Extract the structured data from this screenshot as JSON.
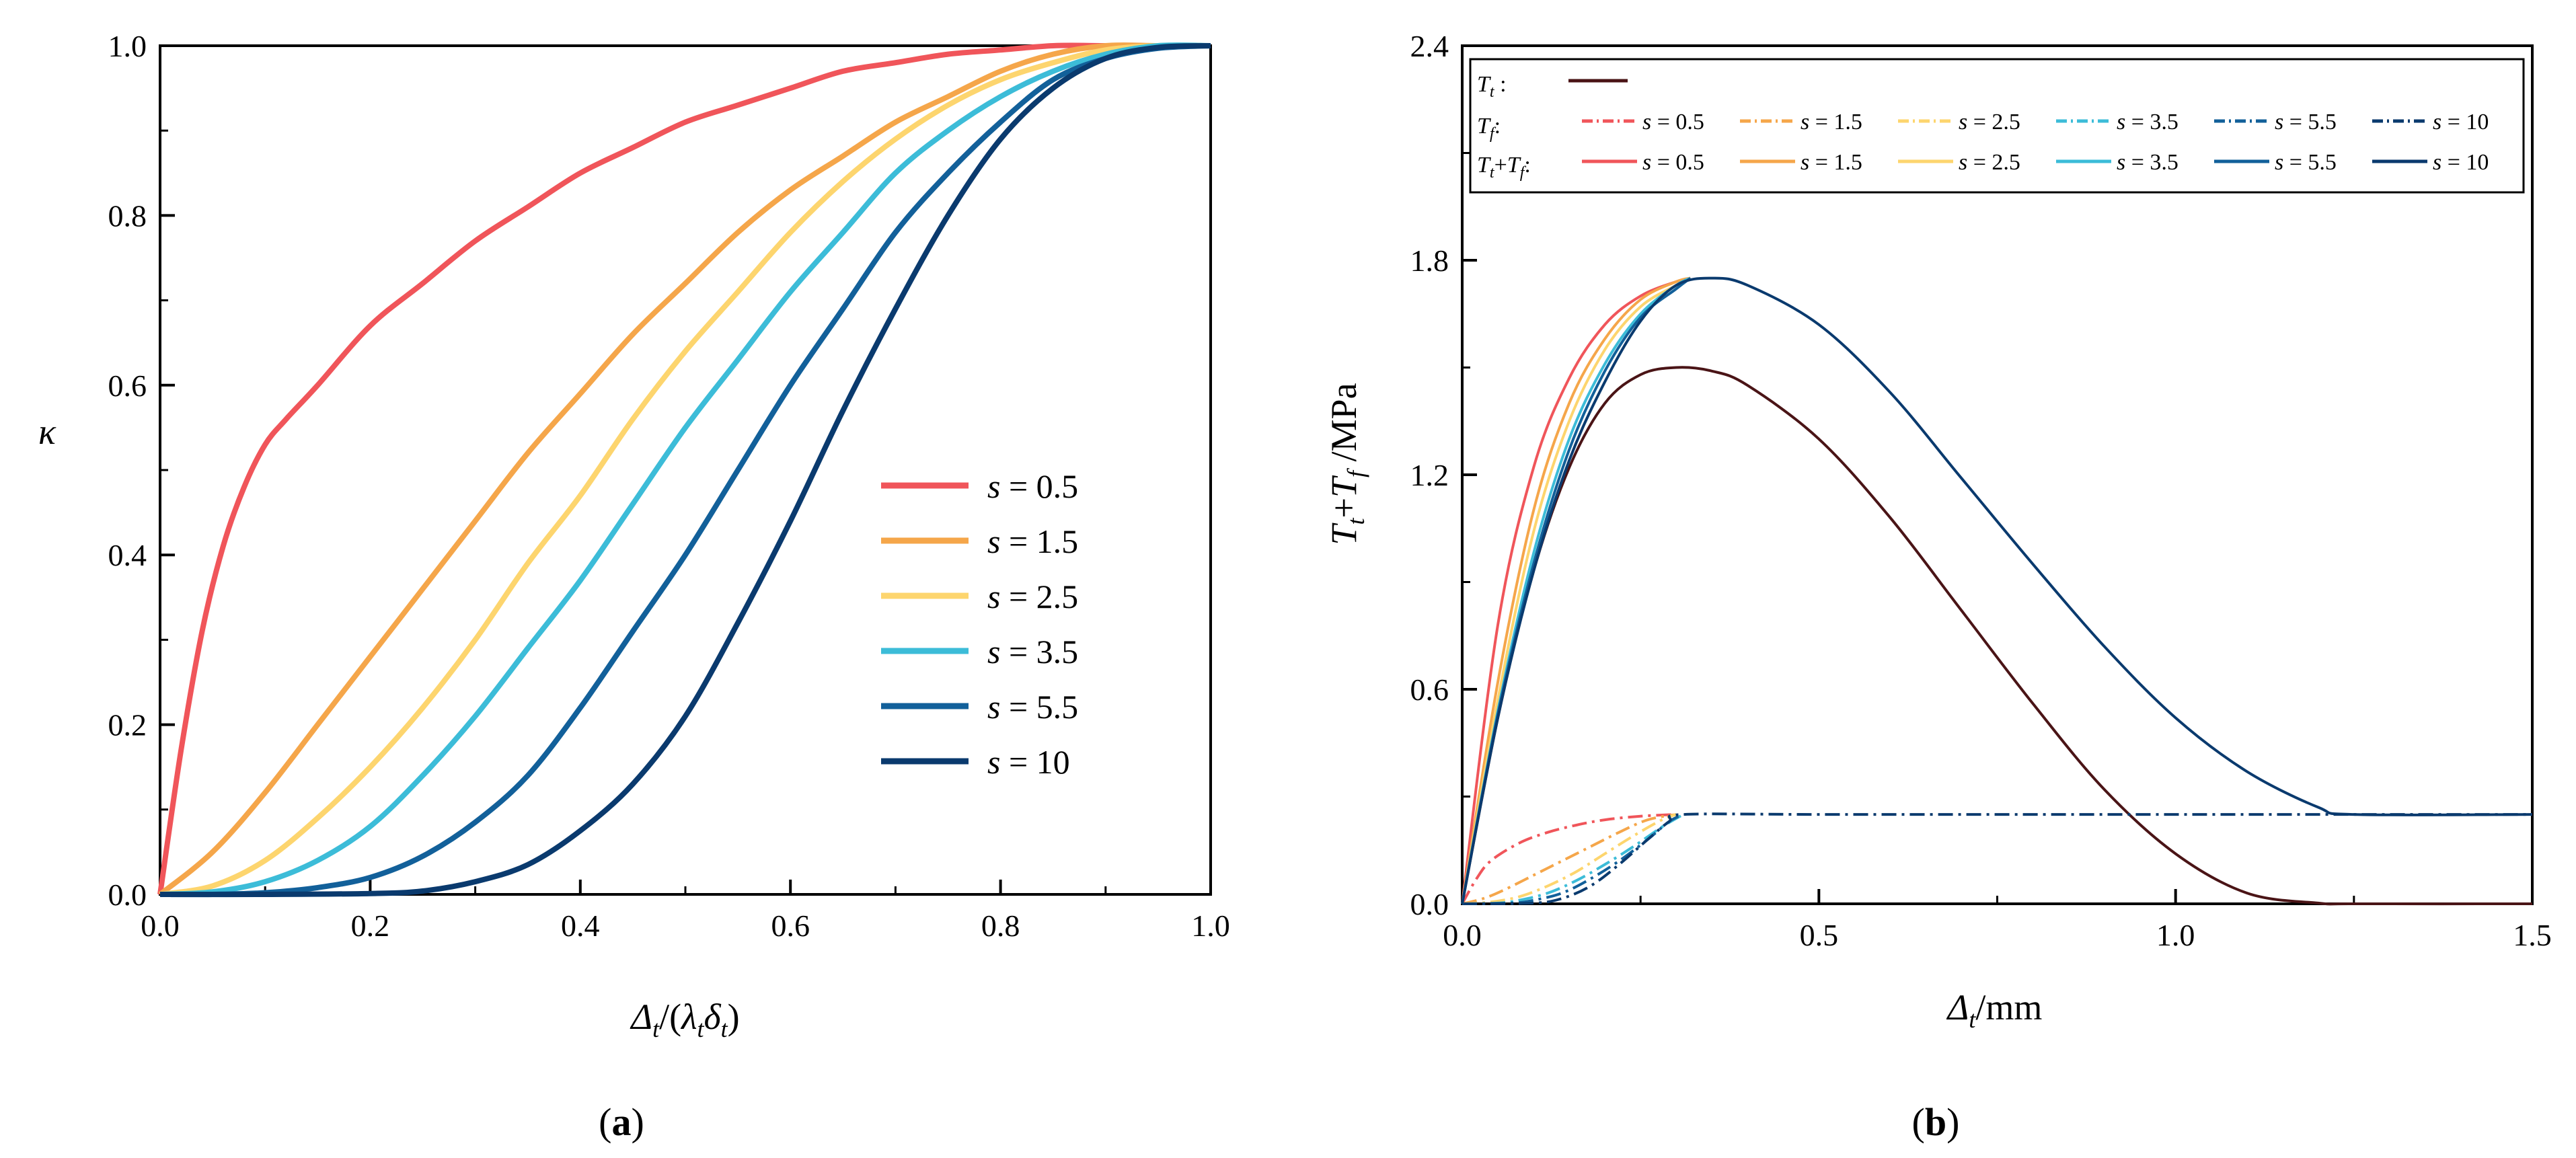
{
  "chart_data": [
    {
      "id": "a",
      "type": "line",
      "panel_label": "a",
      "xlabel": "Δt/(λtδt)",
      "ylabel": "κ",
      "xlim": [
        0,
        1.0
      ],
      "ylim": [
        0,
        1.0
      ],
      "xticks": [
        "0.0",
        "0.2",
        "0.4",
        "0.6",
        "0.8",
        "1.0"
      ],
      "yticks": [
        "0.0",
        "0.2",
        "0.4",
        "0.6",
        "0.8",
        "1.0"
      ],
      "legend": {
        "position": "center-right",
        "entries": [
          {
            "label": "s = 0.5",
            "color": "#f0555a"
          },
          {
            "label": "s = 1.5",
            "color": "#f5a64a"
          },
          {
            "label": "s = 2.5",
            "color": "#fdd56e"
          },
          {
            "label": "s = 3.5",
            "color": "#3cbcd8"
          },
          {
            "label": "s = 5.5",
            "color": "#12609a"
          },
          {
            "label": "s = 10",
            "color": "#0a3a6e"
          }
        ]
      },
      "series": [
        {
          "name": "s = 0.5",
          "x": [
            0,
            0.02,
            0.04,
            0.06,
            0.08,
            0.1,
            0.12,
            0.15,
            0.2,
            0.25,
            0.3,
            0.35,
            0.4,
            0.45,
            0.5,
            0.55,
            0.6,
            0.65,
            0.7,
            0.75,
            0.8,
            0.85,
            0.9,
            0.95,
            1.0
          ],
          "y": [
            0,
            0.17,
            0.31,
            0.41,
            0.48,
            0.53,
            0.56,
            0.6,
            0.67,
            0.72,
            0.77,
            0.81,
            0.85,
            0.88,
            0.91,
            0.93,
            0.95,
            0.97,
            0.98,
            0.99,
            0.995,
            1.0,
            1.0,
            1.0,
            1.0
          ]
        },
        {
          "name": "s = 1.5",
          "x": [
            0,
            0.05,
            0.1,
            0.15,
            0.2,
            0.25,
            0.3,
            0.35,
            0.4,
            0.45,
            0.5,
            0.55,
            0.6,
            0.65,
            0.7,
            0.75,
            0.8,
            0.85,
            0.9,
            0.95,
            1.0
          ],
          "y": [
            0,
            0.05,
            0.12,
            0.2,
            0.28,
            0.36,
            0.44,
            0.52,
            0.59,
            0.66,
            0.72,
            0.78,
            0.83,
            0.87,
            0.91,
            0.94,
            0.97,
            0.99,
            1.0,
            1.0,
            1.0
          ]
        },
        {
          "name": "s = 2.5",
          "x": [
            0,
            0.05,
            0.1,
            0.15,
            0.2,
            0.25,
            0.3,
            0.35,
            0.4,
            0.45,
            0.5,
            0.55,
            0.6,
            0.65,
            0.7,
            0.75,
            0.8,
            0.85,
            0.9,
            0.95,
            1.0
          ],
          "y": [
            0,
            0.01,
            0.04,
            0.09,
            0.15,
            0.22,
            0.3,
            0.39,
            0.47,
            0.56,
            0.64,
            0.71,
            0.78,
            0.84,
            0.89,
            0.93,
            0.96,
            0.98,
            0.995,
            1.0,
            1.0
          ]
        },
        {
          "name": "s = 3.5",
          "x": [
            0,
            0.05,
            0.1,
            0.15,
            0.2,
            0.25,
            0.3,
            0.35,
            0.4,
            0.45,
            0.5,
            0.55,
            0.6,
            0.65,
            0.7,
            0.75,
            0.8,
            0.85,
            0.9,
            0.95,
            1.0
          ],
          "y": [
            0,
            0.003,
            0.015,
            0.04,
            0.08,
            0.14,
            0.21,
            0.29,
            0.37,
            0.46,
            0.55,
            0.63,
            0.71,
            0.78,
            0.85,
            0.9,
            0.94,
            0.97,
            0.99,
            1.0,
            1.0
          ]
        },
        {
          "name": "s = 5.5",
          "x": [
            0,
            0.05,
            0.1,
            0.15,
            0.2,
            0.25,
            0.3,
            0.35,
            0.4,
            0.45,
            0.5,
            0.55,
            0.6,
            0.65,
            0.7,
            0.75,
            0.8,
            0.85,
            0.9,
            0.95,
            1.0
          ],
          "y": [
            0,
            0,
            0.002,
            0.008,
            0.02,
            0.045,
            0.085,
            0.14,
            0.22,
            0.31,
            0.4,
            0.5,
            0.6,
            0.69,
            0.78,
            0.85,
            0.91,
            0.96,
            0.985,
            0.997,
            1.0
          ]
        },
        {
          "name": "s = 10",
          "x": [
            0,
            0.1,
            0.2,
            0.25,
            0.3,
            0.35,
            0.4,
            0.45,
            0.5,
            0.55,
            0.6,
            0.65,
            0.7,
            0.75,
            0.8,
            0.85,
            0.9,
            0.95,
            1.0
          ],
          "y": [
            0,
            0,
            0.001,
            0.004,
            0.015,
            0.035,
            0.075,
            0.13,
            0.21,
            0.32,
            0.44,
            0.57,
            0.69,
            0.8,
            0.89,
            0.95,
            0.985,
            0.998,
            1.0
          ]
        }
      ]
    },
    {
      "id": "b",
      "type": "line",
      "panel_label": "b",
      "xlabel": "Δt/mm",
      "ylabel": "Tt+Tf /MPa",
      "xlim": [
        0,
        1.5
      ],
      "ylim": [
        0,
        2.4
      ],
      "xticks": [
        "0.0",
        "0.5",
        "1.0",
        "1.5"
      ],
      "yticks": [
        "0.0",
        "0.6",
        "1.2",
        "1.8",
        "2.4"
      ],
      "legend": {
        "position": "top",
        "rows": [
          {
            "label": "Tt :",
            "entries": [
              {
                "label": "",
                "color": "#4a1416",
                "style": "solid"
              }
            ]
          },
          {
            "label": "Tf :",
            "entries": [
              {
                "label": "s = 0.5",
                "color": "#f0555a",
                "style": "dashdot"
              },
              {
                "label": "s = 1.5",
                "color": "#f5a64a",
                "style": "dashdot"
              },
              {
                "label": "s = 2.5",
                "color": "#fdd56e",
                "style": "dashdot"
              },
              {
                "label": "s = 3.5",
                "color": "#3cbcd8",
                "style": "dashdot"
              },
              {
                "label": "s = 5.5",
                "color": "#12609a",
                "style": "dashdot"
              },
              {
                "label": "s = 10",
                "color": "#0a3a6e",
                "style": "dashdot"
              }
            ]
          },
          {
            "label": "Tt+Tf :",
            "entries": [
              {
                "label": "s = 0.5",
                "color": "#f0555a",
                "style": "solid"
              },
              {
                "label": "s = 1.5",
                "color": "#f5a64a",
                "style": "solid"
              },
              {
                "label": "s = 2.5",
                "color": "#fdd56e",
                "style": "solid"
              },
              {
                "label": "s = 3.5",
                "color": "#3cbcd8",
                "style": "solid"
              },
              {
                "label": "s = 5.5",
                "color": "#12609a",
                "style": "solid"
              },
              {
                "label": "s = 10",
                "color": "#0a3a6e",
                "style": "solid"
              }
            ]
          }
        ]
      },
      "series": [
        {
          "name": "Tt",
          "color": "#4a1416",
          "style": "solid",
          "x": [
            0,
            0.05,
            0.1,
            0.15,
            0.2,
            0.25,
            0.3,
            0.35,
            0.4,
            0.5,
            0.6,
            0.7,
            0.8,
            0.9,
            1.0,
            1.1,
            1.2,
            1.25,
            1.5
          ],
          "y": [
            0,
            0.52,
            0.93,
            1.22,
            1.4,
            1.48,
            1.5,
            1.49,
            1.45,
            1.3,
            1.08,
            0.82,
            0.56,
            0.32,
            0.14,
            0.03,
            0.002,
            0,
            0
          ]
        },
        {
          "name": "Tf s = 0.5",
          "color": "#f0555a",
          "style": "dashdot",
          "x": [
            0,
            0.02,
            0.04,
            0.08,
            0.12,
            0.16,
            0.2,
            0.25,
            0.3
          ],
          "y": [
            0,
            0.07,
            0.12,
            0.17,
            0.2,
            0.22,
            0.235,
            0.245,
            0.25
          ]
        },
        {
          "name": "Tf s = 1.5",
          "color": "#f5a64a",
          "style": "dashdot",
          "x": [
            0,
            0.03,
            0.06,
            0.1,
            0.14,
            0.18,
            0.22,
            0.26,
            0.3
          ],
          "y": [
            0,
            0.015,
            0.04,
            0.08,
            0.12,
            0.16,
            0.2,
            0.235,
            0.25
          ]
        },
        {
          "name": "Tf s = 2.5",
          "color": "#fdd56e",
          "style": "dashdot",
          "x": [
            0,
            0.04,
            0.08,
            0.12,
            0.16,
            0.2,
            0.24,
            0.28,
            0.3
          ],
          "y": [
            0,
            0.005,
            0.02,
            0.05,
            0.09,
            0.14,
            0.19,
            0.235,
            0.25
          ]
        },
        {
          "name": "Tf s = 3.5",
          "color": "#3cbcd8",
          "style": "dashdot",
          "x": [
            0,
            0.05,
            0.08,
            0.12,
            0.16,
            0.2,
            0.24,
            0.28,
            0.31
          ],
          "y": [
            0,
            0.002,
            0.01,
            0.03,
            0.065,
            0.11,
            0.16,
            0.215,
            0.25
          ]
        },
        {
          "name": "Tf s = 5.5",
          "color": "#12609a",
          "style": "dashdot",
          "x": [
            0,
            0.07,
            0.1,
            0.14,
            0.18,
            0.22,
            0.26,
            0.29,
            0.31
          ],
          "y": [
            0,
            0.002,
            0.01,
            0.03,
            0.07,
            0.12,
            0.18,
            0.23,
            0.25
          ]
        },
        {
          "name": "Tf s = 10",
          "color": "#0a3a6e",
          "style": "dashdot",
          "x": [
            0,
            0.1,
            0.14,
            0.18,
            0.22,
            0.26,
            0.29,
            0.31,
            0.5,
            0.8,
            1.0,
            1.25,
            1.5
          ],
          "y": [
            0,
            0.002,
            0.015,
            0.05,
            0.11,
            0.18,
            0.23,
            0.25,
            0.25,
            0.25,
            0.25,
            0.25,
            0.25
          ]
        },
        {
          "name": "Tt+Tf s = 0.5",
          "color": "#f0555a",
          "style": "solid",
          "x": [
            0,
            0.05,
            0.1,
            0.15,
            0.2,
            0.25,
            0.3,
            0.32
          ],
          "y": [
            0,
            0.78,
            1.22,
            1.47,
            1.62,
            1.7,
            1.74,
            1.75
          ]
        },
        {
          "name": "Tt+Tf s = 1.5",
          "color": "#f5a64a",
          "style": "solid",
          "x": [
            0,
            0.05,
            0.1,
            0.15,
            0.2,
            0.25,
            0.3,
            0.32
          ],
          "y": [
            0,
            0.62,
            1.1,
            1.4,
            1.58,
            1.69,
            1.74,
            1.75
          ]
        },
        {
          "name": "Tt+Tf s = 2.5",
          "color": "#fdd56e",
          "style": "solid",
          "x": [
            0,
            0.05,
            0.1,
            0.15,
            0.2,
            0.25,
            0.3,
            0.32
          ],
          "y": [
            0,
            0.57,
            1.04,
            1.35,
            1.55,
            1.67,
            1.73,
            1.75
          ]
        },
        {
          "name": "Tt+Tf s = 3.5",
          "color": "#3cbcd8",
          "style": "solid",
          "x": [
            0,
            0.05,
            0.1,
            0.15,
            0.2,
            0.25,
            0.3,
            0.32
          ],
          "y": [
            0,
            0.54,
            0.98,
            1.3,
            1.51,
            1.65,
            1.73,
            1.75
          ]
        },
        {
          "name": "Tt+Tf s = 5.5",
          "color": "#12609a",
          "style": "solid",
          "x": [
            0,
            0.05,
            0.1,
            0.15,
            0.2,
            0.25,
            0.3,
            0.32
          ],
          "y": [
            0,
            0.53,
            0.95,
            1.27,
            1.49,
            1.64,
            1.72,
            1.75
          ]
        },
        {
          "name": "Tt+Tf s = 10",
          "color": "#0a3a6e",
          "style": "solid",
          "x": [
            0,
            0.05,
            0.1,
            0.15,
            0.2,
            0.25,
            0.3,
            0.35,
            0.4,
            0.5,
            0.6,
            0.7,
            0.8,
            0.9,
            1.0,
            1.1,
            1.2,
            1.25,
            1.5
          ],
          "y": [
            0,
            0.52,
            0.93,
            1.24,
            1.46,
            1.63,
            1.73,
            1.75,
            1.73,
            1.62,
            1.43,
            1.19,
            0.95,
            0.72,
            0.52,
            0.37,
            0.27,
            0.25,
            0.25
          ]
        }
      ]
    }
  ]
}
